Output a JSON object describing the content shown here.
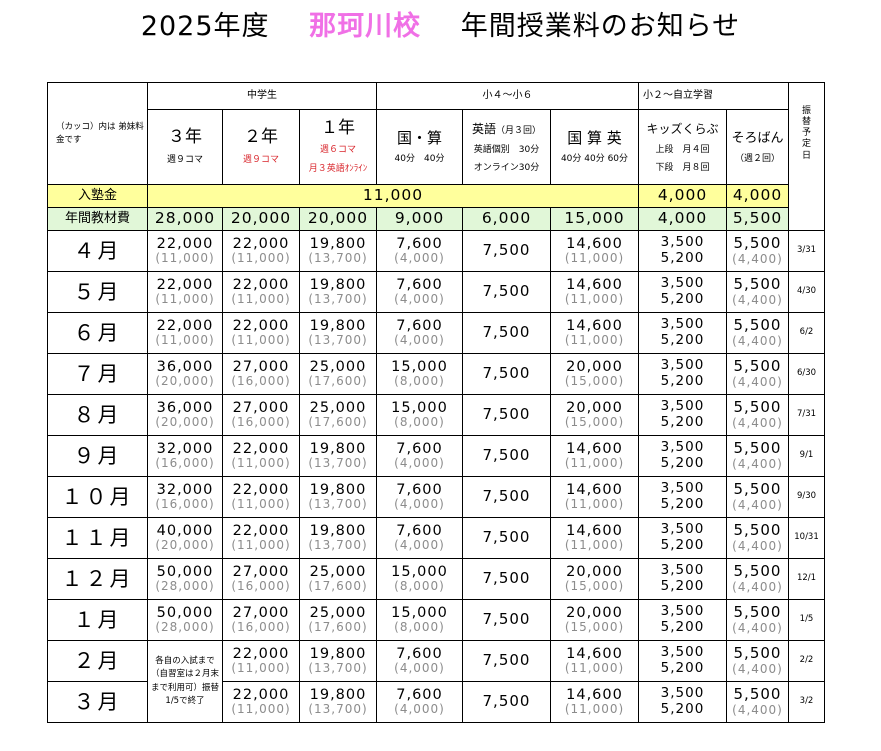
{
  "title": {
    "year": "2025年度",
    "school": "那珂川校",
    "rest": "年間授業料のお知らせ"
  },
  "groups": {
    "junior_high": "中学生",
    "elem": "小４～小６",
    "kids": "小２～自立学習"
  },
  "note": "（カッコ）内は 弟妹料金です",
  "cols": [
    {
      "label": "３年",
      "sub": "週９コマ",
      "sub2": ""
    },
    {
      "label": "２年",
      "sub": "週９コマ",
      "sub2": ""
    },
    {
      "label": "１年",
      "sub": "週６コマ",
      "sub2": "月３英語ｵﾝﾗｲﾝ"
    },
    {
      "label": "国・算",
      "sub": "40分　40分",
      "sub2": ""
    },
    {
      "label": "英語",
      "label_small": "（月３回）",
      "sub": "英語個別　30分",
      "sub2": "オンライン30分"
    },
    {
      "label": "国 算 英",
      "sub": "40分 40分 60分",
      "sub2": ""
    },
    {
      "label": "キッズくらぶ",
      "sub": "上段　月４回",
      "sub2": "下段　月８回"
    },
    {
      "label": "そろばん",
      "sub": "（週２回）",
      "sub2": ""
    }
  ],
  "transfer_header": "振替予定日",
  "enrollment": {
    "label": "入塾金",
    "merged": "11,000",
    "kids": "4,000",
    "soroban": "4,000"
  },
  "materials": {
    "label": "年間教材費",
    "values": [
      "28,000",
      "20,000",
      "20,000",
      "9,000",
      "6,000",
      "15,000",
      "4,000",
      "5,500"
    ]
  },
  "months": [
    {
      "label": "４月",
      "c3": [
        "22,000",
        "(11,000)"
      ],
      "c2": [
        "22,000",
        "(11,000)"
      ],
      "c1": [
        "19,800",
        "(13,700)"
      ],
      "ks": [
        "7,600",
        "(4,000)"
      ],
      "en": "7,500",
      "kse": [
        "14,600",
        "(11,000)"
      ],
      "kids": [
        "3,500",
        "5,200"
      ],
      "sor": [
        "5,500",
        "(4,400)"
      ],
      "tr": "3/31"
    },
    {
      "label": "５月",
      "c3": [
        "22,000",
        "(11,000)"
      ],
      "c2": [
        "22,000",
        "(11,000)"
      ],
      "c1": [
        "19,800",
        "(13,700)"
      ],
      "ks": [
        "7,600",
        "(4,000)"
      ],
      "en": "7,500",
      "kse": [
        "14,600",
        "(11,000)"
      ],
      "kids": [
        "3,500",
        "5,200"
      ],
      "sor": [
        "5,500",
        "(4,400)"
      ],
      "tr": "4/30"
    },
    {
      "label": "６月",
      "c3": [
        "22,000",
        "(11,000)"
      ],
      "c2": [
        "22,000",
        "(11,000)"
      ],
      "c1": [
        "19,800",
        "(13,700)"
      ],
      "ks": [
        "7,600",
        "(4,000)"
      ],
      "en": "7,500",
      "kse": [
        "14,600",
        "(11,000)"
      ],
      "kids": [
        "3,500",
        "5,200"
      ],
      "sor": [
        "5,500",
        "(4,400)"
      ],
      "tr": "6/2"
    },
    {
      "label": "７月",
      "c3": [
        "36,000",
        "(20,000)"
      ],
      "c2": [
        "27,000",
        "(16,000)"
      ],
      "c1": [
        "25,000",
        "(17,600)"
      ],
      "ks": [
        "15,000",
        "(8,000)"
      ],
      "en": "7,500",
      "kse": [
        "20,000",
        "(15,000)"
      ],
      "kids": [
        "3,500",
        "5,200"
      ],
      "sor": [
        "5,500",
        "(4,400)"
      ],
      "tr": "6/30"
    },
    {
      "label": "８月",
      "c3": [
        "36,000",
        "(20,000)"
      ],
      "c2": [
        "27,000",
        "(16,000)"
      ],
      "c1": [
        "25,000",
        "(17,600)"
      ],
      "ks": [
        "15,000",
        "(8,000)"
      ],
      "en": "7,500",
      "kse": [
        "20,000",
        "(15,000)"
      ],
      "kids": [
        "3,500",
        "5,200"
      ],
      "sor": [
        "5,500",
        "(4,400)"
      ],
      "tr": "7/31"
    },
    {
      "label": "９月",
      "c3": [
        "32,000",
        "(16,000)"
      ],
      "c2": [
        "22,000",
        "(11,000)"
      ],
      "c1": [
        "19,800",
        "(13,700)"
      ],
      "ks": [
        "7,600",
        "(4,000)"
      ],
      "en": "7,500",
      "kse": [
        "14,600",
        "(11,000)"
      ],
      "kids": [
        "3,500",
        "5,200"
      ],
      "sor": [
        "5,500",
        "(4,400)"
      ],
      "tr": "9/1"
    },
    {
      "label": "１０月",
      "c3": [
        "32,000",
        "(16,000)"
      ],
      "c2": [
        "22,000",
        "(11,000)"
      ],
      "c1": [
        "19,800",
        "(13,700)"
      ],
      "ks": [
        "7,600",
        "(4,000)"
      ],
      "en": "7,500",
      "kse": [
        "14,600",
        "(11,000)"
      ],
      "kids": [
        "3,500",
        "5,200"
      ],
      "sor": [
        "5,500",
        "(4,400)"
      ],
      "tr": "9/30"
    },
    {
      "label": "１１月",
      "c3": [
        "40,000",
        "(20,000)"
      ],
      "c2": [
        "22,000",
        "(11,000)"
      ],
      "c1": [
        "19,800",
        "(13,700)"
      ],
      "ks": [
        "7,600",
        "(4,000)"
      ],
      "en": "7,500",
      "kse": [
        "14,600",
        "(11,000)"
      ],
      "kids": [
        "3,500",
        "5,200"
      ],
      "sor": [
        "5,500",
        "(4,400)"
      ],
      "tr": "10/31"
    },
    {
      "label": "１２月",
      "c3": [
        "50,000",
        "(28,000)"
      ],
      "c2": [
        "27,000",
        "(16,000)"
      ],
      "c1": [
        "25,000",
        "(17,600)"
      ],
      "ks": [
        "15,000",
        "(8,000)"
      ],
      "en": "7,500",
      "kse": [
        "20,000",
        "(15,000)"
      ],
      "kids": [
        "3,500",
        "5,200"
      ],
      "sor": [
        "5,500",
        "(4,400)"
      ],
      "tr": "12/1"
    },
    {
      "label": "１月",
      "c3": [
        "50,000",
        "(28,000)"
      ],
      "c2": [
        "27,000",
        "(16,000)"
      ],
      "c1": [
        "25,000",
        "(17,600)"
      ],
      "ks": [
        "15,000",
        "(8,000)"
      ],
      "en": "7,500",
      "kse": [
        "20,000",
        "(15,000)"
      ],
      "kids": [
        "3,500",
        "5,200"
      ],
      "sor": [
        "5,500",
        "(4,400)"
      ],
      "tr": "1/5"
    },
    {
      "label": "２月",
      "c3": null,
      "c2": [
        "22,000",
        "(11,000)"
      ],
      "c1": [
        "19,800",
        "(13,700)"
      ],
      "ks": [
        "7,600",
        "(4,000)"
      ],
      "en": "7,500",
      "kse": [
        "14,600",
        "(11,000)"
      ],
      "kids": [
        "3,500",
        "5,200"
      ],
      "sor": [
        "5,500",
        "(4,400)"
      ],
      "tr": "2/2"
    },
    {
      "label": "３月",
      "c3": null,
      "c2": [
        "22,000",
        "(11,000)"
      ],
      "c1": [
        "19,800",
        "(13,700)"
      ],
      "ks": [
        "7,600",
        "(4,000)"
      ],
      "en": "7,500",
      "kse": [
        "14,600",
        "(11,000)"
      ],
      "kids": [
        "3,500",
        "5,200"
      ],
      "sor": [
        "5,500",
        "(4,400)"
      ],
      "tr": "3/2"
    }
  ],
  "feb_mar_note": "各自の入試まで（自習室は２月末まで利用可）振替1/5で終了"
}
